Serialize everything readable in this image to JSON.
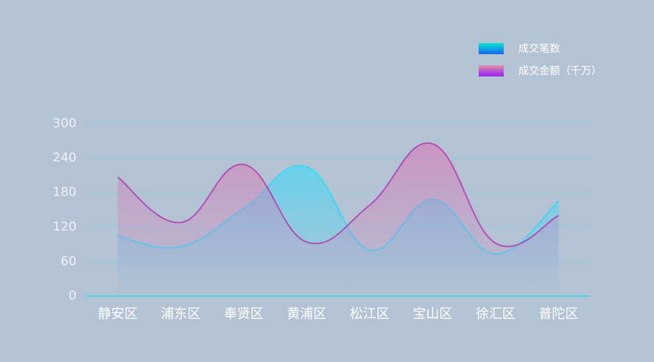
{
  "chart_data": {
    "type": "line",
    "categories": [
      "静安区",
      "浦东区",
      "奉贤区",
      "黄浦区",
      "松江区",
      "宝山区",
      "徐汇区",
      "普陀区"
    ],
    "series": [
      {
        "name": "成交笔数",
        "color": "#3fd6f6",
        "values": [
          104,
          86,
          152,
          225,
          80,
          168,
          73,
          165
        ]
      },
      {
        "name": "成交金额（千万）",
        "color": "#b04db5",
        "values": [
          207,
          128,
          229,
          94,
          158,
          265,
          92,
          140
        ]
      }
    ],
    "ylim": [
      0,
      300
    ],
    "yticks": [
      0,
      60,
      120,
      180,
      240,
      300
    ],
    "grid": true,
    "legend": "top-right"
  }
}
